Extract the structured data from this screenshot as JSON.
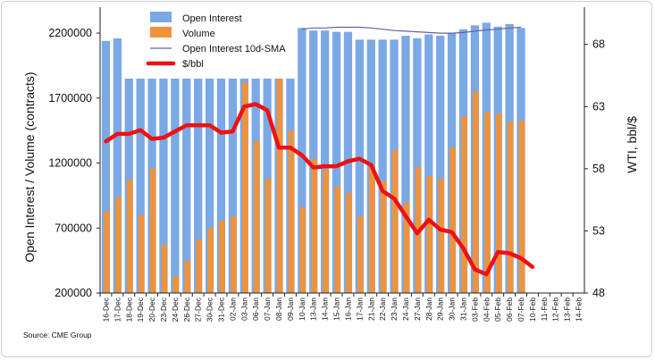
{
  "chart_data": {
    "type": "bar",
    "categories": [
      "16-Dec",
      "17-Dec",
      "18-Dec",
      "19-Dec",
      "20-Dec",
      "23-Dec",
      "24-Dec",
      "26-Dec",
      "27-Dec",
      "30-Dec",
      "31-Dec",
      "02-Jan",
      "03-Jan",
      "06-Jan",
      "07-Jan",
      "08-Jan",
      "09-Jan",
      "10-Jan",
      "13-Jan",
      "14-Jan",
      "15-Jan",
      "16-Jan",
      "17-Jan",
      "21-Jan",
      "22-Jan",
      "23-Jan",
      "24-Jan",
      "27-Jan",
      "28-Jan",
      "29-Jan",
      "30-Jan",
      "31-Jan",
      "03-Feb",
      "04-Feb",
      "05-Feb",
      "06-Feb",
      "07-Feb",
      "10-Feb",
      "11-Feb",
      "12-Feb",
      "13-Feb",
      "14-Feb"
    ],
    "series": [
      {
        "name": "Open Interest",
        "type": "bar",
        "axis": "left",
        "color": "#7aa9e6",
        "values": [
          2140000,
          2160000,
          1850000,
          1850000,
          1850000,
          1850000,
          1850000,
          1850000,
          1850000,
          1850000,
          1850000,
          1850000,
          1850000,
          1850000,
          1850000,
          1850000,
          1850000,
          2240000,
          2220000,
          2220000,
          2210000,
          2210000,
          2150000,
          2150000,
          2150000,
          2150000,
          2180000,
          2160000,
          2190000,
          2180000,
          2200000,
          2230000,
          2260000,
          2280000,
          2250000,
          2270000,
          2240000,
          null,
          null,
          null,
          null,
          null
        ]
      },
      {
        "name": "Volume",
        "type": "bar",
        "axis": "left",
        "color": "#f0923a",
        "values": [
          830000,
          940000,
          1070000,
          800000,
          1160000,
          570000,
          330000,
          450000,
          610000,
          700000,
          760000,
          790000,
          1820000,
          1370000,
          1080000,
          1850000,
          1450000,
          860000,
          1230000,
          1150000,
          1020000,
          970000,
          790000,
          1180000,
          1060000,
          1300000,
          900000,
          1170000,
          1100000,
          1080000,
          1320000,
          1560000,
          1750000,
          1590000,
          1580000,
          1520000,
          1530000,
          null,
          null,
          null,
          null,
          null
        ]
      },
      {
        "name": "Open Interest 10d-SMA",
        "type": "line",
        "axis": "left",
        "color": "#6a5ea3",
        "values": [
          null,
          null,
          null,
          null,
          null,
          null,
          null,
          null,
          null,
          null,
          null,
          null,
          null,
          null,
          null,
          null,
          null,
          2230000,
          2240000,
          2240000,
          2245000,
          2245000,
          2245000,
          2240000,
          2230000,
          2220000,
          2215000,
          2210000,
          2205000,
          2200000,
          2200000,
          2205000,
          2215000,
          2225000,
          2230000,
          2240000,
          2245000,
          null,
          null,
          null,
          null,
          null
        ]
      },
      {
        "name": "$/bbl",
        "type": "line",
        "axis": "right",
        "color": "#ee1111",
        "values": [
          60.2,
          60.8,
          60.8,
          61.1,
          60.4,
          60.5,
          61.0,
          61.5,
          61.5,
          61.5,
          60.9,
          61.0,
          63.0,
          63.2,
          62.7,
          59.7,
          59.7,
          59.1,
          58.1,
          58.2,
          58.2,
          58.6,
          58.8,
          58.3,
          56.2,
          55.6,
          54.2,
          52.8,
          53.9,
          53.1,
          52.9,
          51.6,
          49.9,
          49.5,
          51.3,
          51.2,
          50.8,
          50.1,
          null,
          null,
          null,
          null
        ]
      }
    ],
    "ylabel": "Open Interest / Volume (contracts)",
    "y2label": "WTI, bbl/$",
    "ylim": [
      200000,
      2400000
    ],
    "y2lim": [
      48,
      71
    ],
    "yticks": [
      "200000",
      "700000",
      "1200000",
      "1700000",
      "2200000"
    ],
    "y2ticks": [
      "48",
      "53",
      "58",
      "63",
      "68"
    ],
    "legend_position": "top-left",
    "grid": false
  },
  "source_label": "Source: CME Group"
}
